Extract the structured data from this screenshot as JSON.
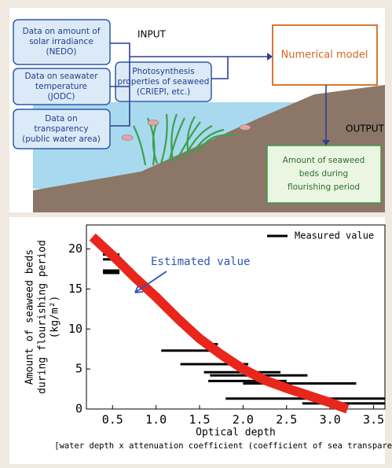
{
  "diagram": {
    "inputs": [
      {
        "lines": [
          "Data on amount of",
          "solar irradiance",
          "(NEDO)"
        ]
      },
      {
        "lines": [
          "Data on seawater",
          "temperature",
          "(JODC)"
        ]
      },
      {
        "lines": [
          "Data on",
          "transparency",
          "(public water area)"
        ]
      },
      {
        "lines": [
          "Photosynthesis",
          "properties of seaweed",
          "(CRIEPI, etc.)"
        ]
      }
    ],
    "input_label": "INPUT",
    "model": "Numerical model",
    "output_label": "OUTPUT",
    "output": {
      "lines": [
        "Amount of seaweed",
        "beds during",
        "flourishing period"
      ]
    }
  },
  "chart_data": {
    "type": "line",
    "xlabel": [
      "Optical depth",
      "[water depth x attenuation coefficient (coefficient of sea transparency)]"
    ],
    "ylabel": [
      "Amount of seaweed beds",
      "during flourishing period",
      "(kg/m²)"
    ],
    "xlim": [
      0.2,
      3.63
    ],
    "ylim": [
      0,
      23
    ],
    "xticks": [
      0.5,
      {
        "value": 1,
        "label": "1.0"
      },
      1.5,
      {
        "value": 2,
        "label": "2.0"
      },
      2.5,
      {
        "value": 3,
        "label": "3.0"
      },
      3.5
    ],
    "yticks": [
      0,
      5,
      10,
      15,
      20
    ],
    "legend": "upper right",
    "series": [
      {
        "name": "Measured value",
        "color": "#000000",
        "style": "interval",
        "x_start": [
          0.39,
          0.39,
          0.39,
          0.39,
          1.25,
          1.6,
          1.06,
          1.28,
          1.55,
          1.62,
          1.6,
          2.0,
          1.8,
          2.68
        ],
        "x_end": [
          0.58,
          0.58,
          0.58,
          0.58,
          1.32,
          1.71,
          1.73,
          2.06,
          2.43,
          2.74,
          2.5,
          3.3,
          3.63,
          3.63
        ],
        "values": [
          19.3,
          18.7,
          17.3,
          17.0,
          10.6,
          8.1,
          7.3,
          5.6,
          4.6,
          4.2,
          3.5,
          3.2,
          1.3,
          0.7
        ]
      },
      {
        "name": "Estimated value",
        "color": "#e8261c",
        "style": "band",
        "x": [
          0.27,
          0.5,
          0.75,
          1.0,
          1.25,
          1.5,
          1.75,
          2.0,
          2.25,
          2.5,
          2.75,
          3.0,
          3.2
        ],
        "values": [
          21.5,
          19.2,
          16.5,
          14,
          11.3,
          8.8,
          6.8,
          5.0,
          3.6,
          2.6,
          1.7,
          0.8,
          0
        ]
      }
    ]
  }
}
